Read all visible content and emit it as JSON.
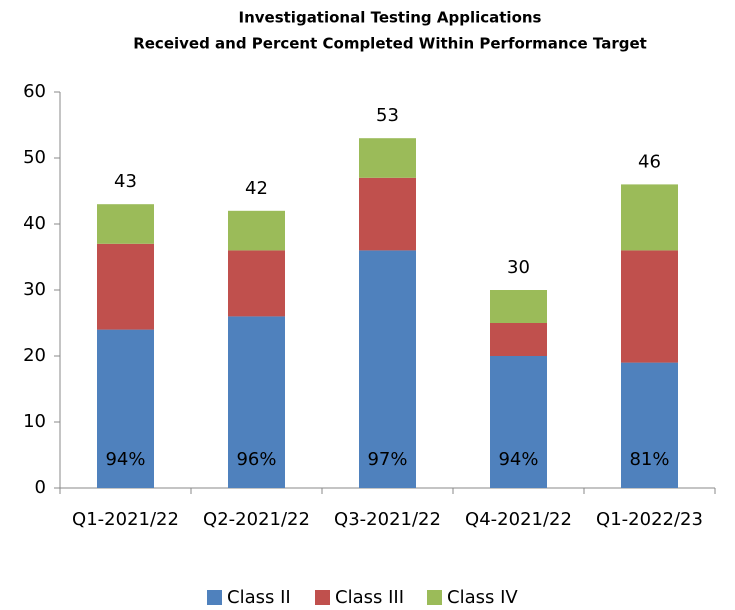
{
  "chart_data": {
    "type": "stacked_bar",
    "title": "Investigational Testing Applications",
    "subtitle": "Received and Percent Completed Within Performance Target",
    "categories": [
      "Q1-2021/22",
      "Q2-2021/22",
      "Q3-2021/22",
      "Q4-2021/22",
      "Q1-2022/23"
    ],
    "series": [
      {
        "name": "Class II",
        "color": "#4f81bd",
        "values": [
          24,
          26,
          36,
          20,
          19
        ]
      },
      {
        "name": "Class III",
        "color": "#c0504d",
        "values": [
          13,
          10,
          11,
          5,
          17
        ]
      },
      {
        "name": "Class IV",
        "color": "#9bbb59",
        "values": [
          6,
          6,
          6,
          5,
          10
        ]
      }
    ],
    "totals": [
      43,
      42,
      53,
      30,
      46
    ],
    "percent_labels": [
      "94%",
      "96%",
      "97%",
      "94%",
      "81%"
    ],
    "ylim": [
      0,
      60
    ],
    "yticks": [
      0,
      10,
      20,
      30,
      40,
      50,
      60
    ],
    "legend": "bottom"
  }
}
